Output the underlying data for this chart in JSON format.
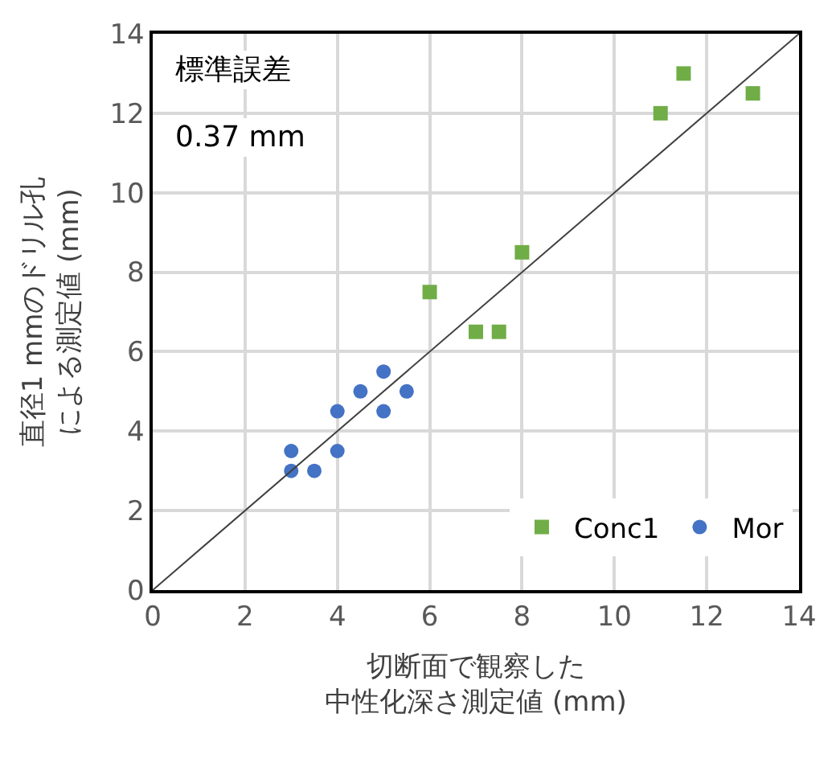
{
  "chart_data": {
    "type": "scatter",
    "xlabel": "切断面で観察した中性化深さ測定値 (mm)",
    "ylabel": "直径1 mmのドリル孔による測定値 (mm)",
    "annotations": [
      "標準誤差",
      "0.37 mm"
    ],
    "xlim": [
      0,
      14
    ],
    "xticks": [
      0,
      2,
      4,
      6,
      8,
      10,
      12,
      14
    ],
    "ylim": [
      0,
      14
    ],
    "yticks": [
      0,
      2,
      4,
      6,
      8,
      10,
      12,
      14
    ],
    "grid": true,
    "legend": "bottom right",
    "series": [
      {
        "name": "Conc1",
        "color": "#70ad47",
        "marker": "square",
        "x": [
          6,
          7,
          7.5,
          8,
          11,
          11.5,
          13
        ],
        "values": [
          7.5,
          6.5,
          6.5,
          8.5,
          12,
          13,
          12.5
        ]
      },
      {
        "name": "Mor",
        "color": "#4472c4",
        "marker": "circle",
        "x": [
          3,
          3,
          3.5,
          4,
          4,
          4.5,
          5,
          5,
          5.5
        ],
        "values": [
          3,
          3.5,
          3,
          3.5,
          4.5,
          5,
          4.5,
          5.5,
          5
        ]
      },
      {
        "type": "line",
        "color": "#404040",
        "marker": "none",
        "x": [
          0,
          14
        ],
        "values": [
          0,
          14
        ]
      }
    ]
  }
}
